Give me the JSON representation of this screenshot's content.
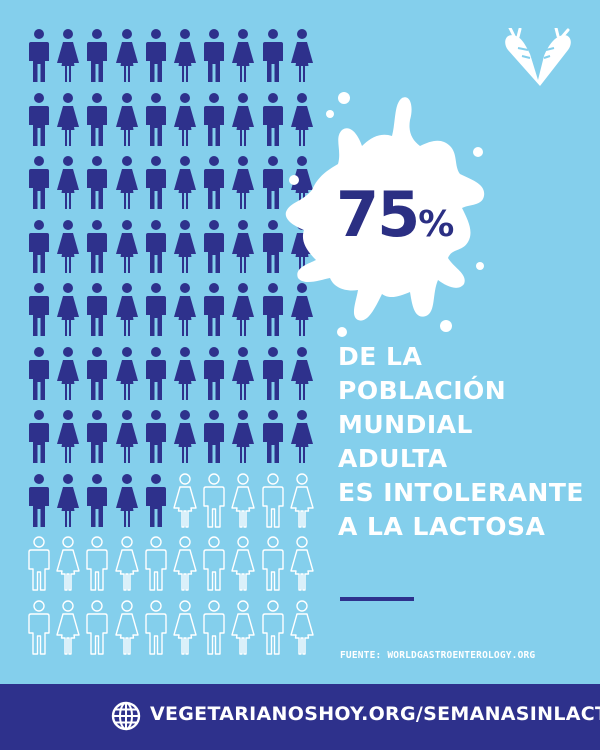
{
  "colors": {
    "background": "#84CFEC",
    "accent": "#2E318C",
    "filled_person": "#2E318C",
    "outline_person": "#FFFFFF",
    "text": "#FFFFFF"
  },
  "figure": {
    "columns": 10,
    "rows": 10,
    "filled_count": 75,
    "total": 100,
    "person_types": [
      "male",
      "female"
    ]
  },
  "stat": {
    "value": "75",
    "unit": "%"
  },
  "headline": {
    "lines": [
      "DE LA",
      "POBLACIÓN",
      "MUNDIAL",
      "ADULTA",
      "ES INTOLERANTE",
      "A LA LACTOSA"
    ]
  },
  "source": {
    "text": "FUENTE: WORLDGASTROENTEROLOGY.ORG"
  },
  "footer": {
    "url": "VEGETARIANOSHOY.ORG/SEMANASINLACTEOS",
    "icon": "globe-icon"
  },
  "logo": {
    "icon": "carrot-heart-logo"
  }
}
